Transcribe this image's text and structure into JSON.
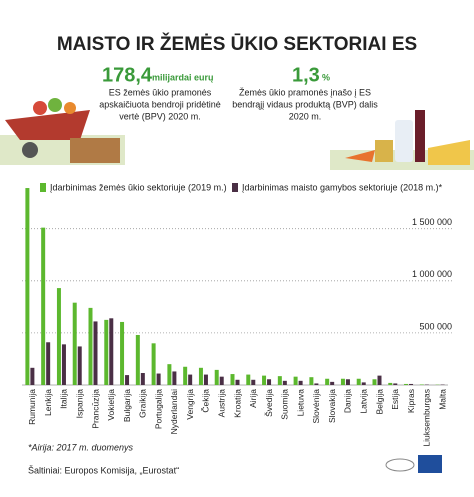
{
  "header": {
    "title": "MAISTO IR ŽEMĖS ŪKIO SEKTORIAI ES",
    "stat1": {
      "value": "178,4",
      "unit": "milijardai eurų",
      "lines": [
        "ES žemės ūkio pramonės",
        "apskaičiuota bendroji pridėtinė",
        "vertė (BPV) 2020 m."
      ]
    },
    "stat2": {
      "value": "1,3",
      "unit": "%",
      "lines": [
        "Žemės ūkio pramonės įnašo į ES",
        "bendrąjį vidaus produktą (BVP) dalis",
        "2020 m."
      ]
    }
  },
  "chart_data": {
    "type": "bar",
    "categories": [
      "Rumunija",
      "Lenkija",
      "Italija",
      "Ispanija",
      "Prancūzija",
      "Vokietija",
      "Bulgarija",
      "Graikija",
      "Portugalija",
      "Nyderlandai",
      "Vengrija",
      "Čekija",
      "Austrija",
      "Kroatija",
      "Airija",
      "Švedija",
      "Suomija",
      "Lietuva",
      "Slovėnija",
      "Slovakija",
      "Danija",
      "Latvija",
      "Belgija",
      "Estija",
      "Kipras",
      "Liuksemburgas",
      "Malta"
    ],
    "series": [
      {
        "name": "Įdarbinimas žemės ūkio sektoriuje (2019 m.)",
        "color": "#5cb82e",
        "values": [
          1890000,
          1510000,
          930000,
          790000,
          740000,
          625000,
          605000,
          480000,
          400000,
          200000,
          175000,
          165000,
          145000,
          105000,
          100000,
          90000,
          85000,
          80000,
          75000,
          60000,
          60000,
          60000,
          55000,
          20000,
          10000,
          5000,
          3000
        ]
      },
      {
        "name": "Įdarbinimas maisto gamybos sektoriuje (2018 m.)*",
        "color": "#4a2f45",
        "values": [
          165000,
          410000,
          390000,
          370000,
          610000,
          640000,
          95000,
          115000,
          110000,
          130000,
          100000,
          100000,
          80000,
          50000,
          50000,
          55000,
          40000,
          40000,
          15000,
          30000,
          55000,
          25000,
          90000,
          15000,
          10000,
          4000,
          4000
        ]
      }
    ],
    "ylim": [
      0,
      1900000
    ],
    "yticks": [
      {
        "value": 500000,
        "label": "500 000"
      },
      {
        "value": 1000000,
        "label": "1 000 000"
      },
      {
        "value": 1500000,
        "label": "1 500 000"
      }
    ],
    "grid": true
  },
  "footer": {
    "note": "*Airija: 2017 m. duomenys",
    "source": "Šaltiniai: Europos Komisija, „Eurostat“"
  }
}
